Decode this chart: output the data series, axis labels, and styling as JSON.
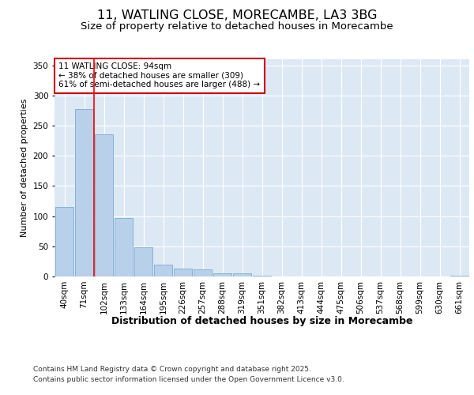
{
  "title_line1": "11, WATLING CLOSE, MORECAMBE, LA3 3BG",
  "title_line2": "Size of property relative to detached houses in Morecambe",
  "xlabel": "Distribution of detached houses by size in Morecambe",
  "ylabel": "Number of detached properties",
  "categories": [
    "40sqm",
    "71sqm",
    "102sqm",
    "133sqm",
    "164sqm",
    "195sqm",
    "226sqm",
    "257sqm",
    "288sqm",
    "319sqm",
    "351sqm",
    "382sqm",
    "413sqm",
    "444sqm",
    "475sqm",
    "506sqm",
    "537sqm",
    "568sqm",
    "599sqm",
    "630sqm",
    "661sqm"
  ],
  "values": [
    115,
    278,
    235,
    97,
    48,
    20,
    13,
    12,
    5,
    5,
    1,
    0,
    0,
    0,
    0,
    0,
    0,
    0,
    0,
    0,
    1
  ],
  "bar_color": "#b8d0ea",
  "bar_edge_color": "#7aacce",
  "background_color": "#dde8f5",
  "grid_color": "#ffffff",
  "red_line_x": 1.5,
  "annotation_text": "11 WATLING CLOSE: 94sqm\n← 38% of detached houses are smaller (309)\n61% of semi-detached houses are larger (488) →",
  "annotation_box_color": "#ffffff",
  "annotation_box_edge": "#cc0000",
  "annotation_text_color": "#000000",
  "ylim": [
    0,
    360
  ],
  "yticks": [
    0,
    50,
    100,
    150,
    200,
    250,
    300,
    350
  ],
  "footer_line1": "Contains HM Land Registry data © Crown copyright and database right 2025.",
  "footer_line2": "Contains public sector information licensed under the Open Government Licence v3.0.",
  "title_fontsize": 11.5,
  "subtitle_fontsize": 9.5,
  "xlabel_fontsize": 9,
  "ylabel_fontsize": 8,
  "tick_fontsize": 7.5,
  "annotation_fontsize": 7.5,
  "footer_fontsize": 6.5
}
